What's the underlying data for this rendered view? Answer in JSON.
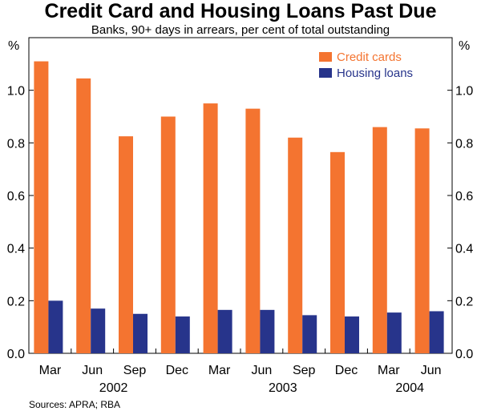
{
  "chart_data": {
    "type": "bar",
    "title": "Credit Card and Housing Loans Past Due",
    "subtitle": "Banks, 90+ days in arrears, per cent of total outstanding",
    "ylabel_left": "%",
    "ylabel_right": "%",
    "ylim": [
      0,
      1.2
    ],
    "yticks": [
      "0.0",
      "0.2",
      "0.4",
      "0.6",
      "0.8",
      "1.0"
    ],
    "categories": [
      "Mar",
      "Jun",
      "Sep",
      "Dec",
      "Mar",
      "Jun",
      "Sep",
      "Dec",
      "Mar",
      "Jun"
    ],
    "year_labels": [
      {
        "label": "2002",
        "category_index": 1.5
      },
      {
        "label": "2003",
        "category_index": 5.5
      },
      {
        "label": "2004",
        "category_index": 8.5
      }
    ],
    "series": [
      {
        "name": "Credit cards",
        "color": "#f47430",
        "values": [
          1.11,
          1.045,
          0.825,
          0.9,
          0.95,
          0.93,
          0.82,
          0.765,
          0.86,
          0.855
        ]
      },
      {
        "name": "Housing loans",
        "color": "#27348b",
        "values": [
          0.2,
          0.17,
          0.15,
          0.14,
          0.165,
          0.165,
          0.145,
          0.14,
          0.155,
          0.16
        ]
      }
    ],
    "legend_position": "top-right",
    "grid": false
  },
  "source": "Sources: APRA; RBA"
}
